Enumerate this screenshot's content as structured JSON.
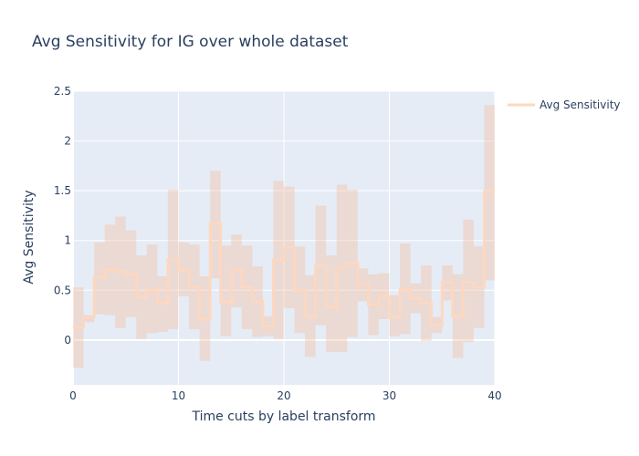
{
  "chart_data": {
    "type": "line",
    "line_shape": "step",
    "title": "Avg Sensitivity for IG over whole dataset",
    "xlabel": "Time cuts by label transform",
    "ylabel": "Avg Sensitivity",
    "xlim": [
      0,
      40
    ],
    "ylim": [
      -0.45,
      2.5
    ],
    "x_ticks": [
      0,
      10,
      20,
      30,
      40
    ],
    "x_tick_labels": [
      "0",
      "10",
      "20",
      "30",
      "40"
    ],
    "y_ticks": [
      0,
      0.5,
      1,
      1.5,
      2,
      2.5
    ],
    "y_tick_labels": [
      "0",
      "0.5",
      "1",
      "1.5",
      "2",
      "2.5"
    ],
    "grid": true,
    "legend_position": "top-right",
    "series": [
      {
        "name": "Avg Sensitivity",
        "color": "#fdd8c0",
        "x": [
          0,
          1,
          2,
          3,
          4,
          5,
          6,
          7,
          8,
          9,
          10,
          11,
          12,
          13,
          14,
          15,
          16,
          17,
          18,
          19,
          20,
          21,
          22,
          23,
          24,
          25,
          26,
          27,
          28,
          29,
          30,
          31,
          32,
          33,
          34,
          35,
          36,
          37,
          38,
          39,
          40
        ],
        "values": [
          0.13,
          0.23,
          0.63,
          0.71,
          0.69,
          0.66,
          0.43,
          0.51,
          0.37,
          0.81,
          0.7,
          0.53,
          0.21,
          1.17,
          0.38,
          0.7,
          0.53,
          0.39,
          0.14,
          0.8,
          0.93,
          0.5,
          0.24,
          0.75,
          0.33,
          0.73,
          0.77,
          0.56,
          0.36,
          0.44,
          0.23,
          0.51,
          0.42,
          0.37,
          0.15,
          0.58,
          0.24,
          0.58,
          0.53,
          1.49,
          1.49
        ],
        "upper": [
          0.53,
          0.25,
          0.98,
          1.16,
          1.24,
          1.1,
          0.85,
          0.96,
          0.64,
          1.51,
          0.98,
          0.96,
          0.64,
          1.7,
          0.95,
          1.06,
          0.95,
          0.74,
          0.24,
          1.6,
          1.54,
          0.94,
          0.65,
          1.35,
          0.85,
          1.56,
          1.51,
          0.72,
          0.66,
          0.67,
          0.45,
          0.97,
          0.57,
          0.75,
          0.23,
          0.75,
          0.66,
          1.21,
          0.94,
          2.36,
          2.36
        ],
        "lower": [
          -0.28,
          0.18,
          0.26,
          0.25,
          0.12,
          0.23,
          0.01,
          0.07,
          0.08,
          0.11,
          0.44,
          0.11,
          -0.21,
          0.62,
          0.04,
          0.33,
          0.11,
          0.03,
          0.04,
          0.01,
          0.32,
          0.07,
          -0.17,
          0.15,
          -0.12,
          -0.12,
          0.03,
          0.39,
          0.05,
          0.21,
          0.04,
          0.06,
          0.27,
          -0.01,
          0.07,
          0.4,
          -0.18,
          -0.02,
          0.12,
          0.6,
          0.6
        ]
      }
    ]
  }
}
